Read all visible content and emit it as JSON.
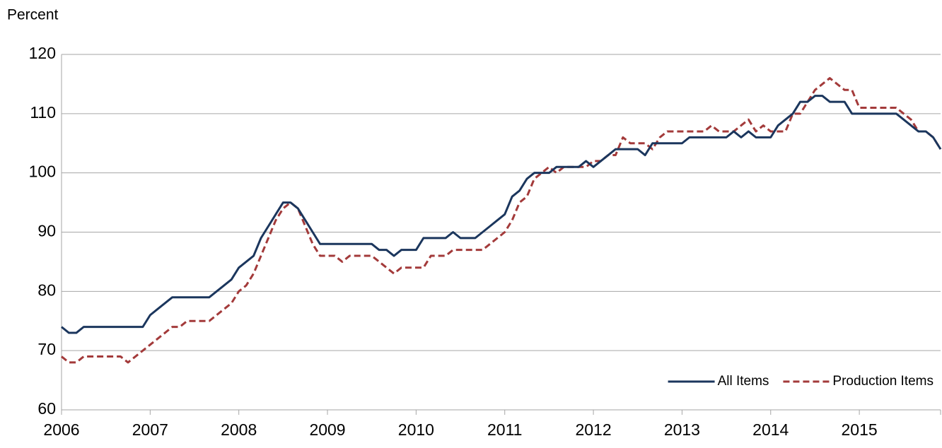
{
  "chart_data": {
    "type": "line",
    "y_label": "Percent",
    "categories": [
      "2006",
      null,
      null,
      null,
      null,
      null,
      null,
      null,
      null,
      null,
      null,
      null,
      "2007",
      null,
      null,
      null,
      null,
      null,
      null,
      null,
      null,
      null,
      null,
      null,
      "2008",
      null,
      null,
      null,
      null,
      null,
      null,
      null,
      null,
      null,
      null,
      null,
      "2009",
      null,
      null,
      null,
      null,
      null,
      null,
      null,
      null,
      null,
      null,
      null,
      "2010",
      null,
      null,
      null,
      null,
      null,
      null,
      null,
      null,
      null,
      null,
      null,
      "2011",
      null,
      null,
      null,
      null,
      null,
      null,
      null,
      null,
      null,
      null,
      null,
      "2012",
      null,
      null,
      null,
      null,
      null,
      null,
      null,
      null,
      null,
      null,
      null,
      "2013",
      null,
      null,
      null,
      null,
      null,
      null,
      null,
      null,
      null,
      null,
      null,
      "2014",
      null,
      null,
      null,
      null,
      null,
      null,
      null,
      null,
      null,
      null,
      null,
      "2015",
      null,
      null,
      null,
      null,
      null,
      null,
      null,
      null,
      null,
      null,
      null
    ],
    "series": [
      {
        "name": "All Items",
        "color": "#1b365d",
        "dash": false,
        "values": [
          74,
          73,
          73,
          74,
          74,
          74,
          74,
          74,
          74,
          74,
          74,
          74,
          76,
          77,
          78,
          79,
          79,
          79,
          79,
          79,
          79,
          80,
          81,
          82,
          84,
          85,
          86,
          89,
          91,
          93,
          95,
          95,
          94,
          92,
          90,
          88,
          88,
          88,
          88,
          88,
          88,
          88,
          88,
          87,
          87,
          86,
          87,
          87,
          87,
          89,
          89,
          89,
          89,
          90,
          89,
          89,
          89,
          90,
          91,
          92,
          93,
          96,
          97,
          99,
          100,
          100,
          100,
          101,
          101,
          101,
          101,
          102,
          101,
          102,
          103,
          104,
          104,
          104,
          104,
          103,
          105,
          105,
          105,
          105,
          105,
          106,
          106,
          106,
          106,
          106,
          106,
          107,
          106,
          107,
          106,
          106,
          106,
          108,
          109,
          110,
          112,
          112,
          113,
          113,
          112,
          112,
          112,
          110,
          110,
          110,
          110,
          110,
          110,
          110,
          109,
          108,
          107,
          107,
          106,
          104
        ]
      },
      {
        "name": "Production Items",
        "color": "#a33a3a",
        "dash": true,
        "values": [
          69,
          68,
          68,
          69,
          69,
          69,
          69,
          69,
          69,
          68,
          69,
          70,
          71,
          72,
          73,
          74,
          74,
          75,
          75,
          75,
          75,
          76,
          77,
          78,
          80,
          81,
          83,
          86,
          89,
          92,
          94,
          95,
          94,
          91,
          88,
          86,
          86,
          86,
          85,
          86,
          86,
          86,
          86,
          85,
          84,
          83,
          84,
          84,
          84,
          84,
          86,
          86,
          86,
          87,
          87,
          87,
          87,
          87,
          88,
          89,
          90,
          92,
          95,
          96,
          99,
          100,
          101,
          100,
          101,
          101,
          101,
          101,
          102,
          102,
          103,
          103,
          106,
          105,
          105,
          105,
          104,
          106,
          107,
          107,
          107,
          107,
          107,
          107,
          108,
          107,
          107,
          107,
          108,
          109,
          107,
          108,
          107,
          107,
          107,
          110,
          110,
          112,
          114,
          115,
          116,
          115,
          114,
          114,
          111,
          111,
          111,
          111,
          111,
          111,
          110,
          109,
          107,
          107,
          106,
          104
        ]
      }
    ],
    "ylim": [
      60,
      120
    ],
    "yticks": [
      60,
      70,
      80,
      90,
      100,
      110,
      120
    ],
    "grid": true,
    "legend": "bottom-right"
  }
}
